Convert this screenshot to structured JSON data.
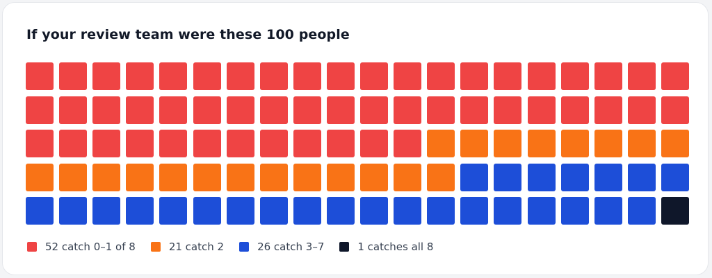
{
  "chart_data": {
    "type": "waffle",
    "title": "If your review team were these 100 people",
    "rows": 5,
    "columns": 20,
    "total": 100,
    "series": [
      {
        "name": "52 catch 0–1 of 8",
        "value": 52,
        "color": "#ef4444"
      },
      {
        "name": "21 catch 2",
        "value": 21,
        "color": "#f97316"
      },
      {
        "name": "26 catch 3–7",
        "value": 26,
        "color": "#1d4ed8"
      },
      {
        "name": "1 catches all 8",
        "value": 1,
        "color": "#0f172a"
      }
    ],
    "legend_position": "bottom-left"
  }
}
